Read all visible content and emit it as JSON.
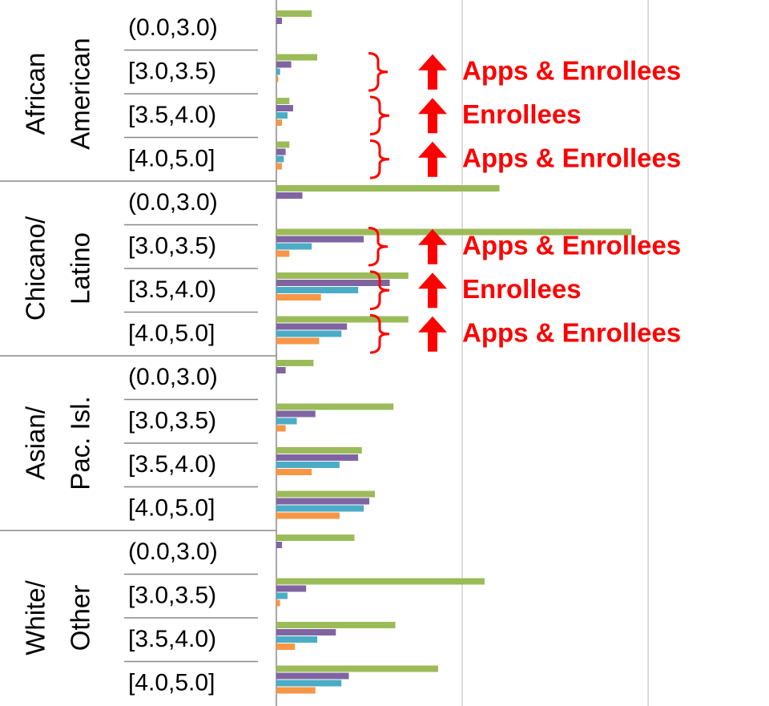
{
  "chart_data": {
    "type": "bar",
    "orientation": "horizontal",
    "groups": [
      {
        "lines": [
          "African",
          "American"
        ],
        "categories": [
          "(0.0,3.0)",
          "[3.0,3.5)",
          "[3.5,4.0)",
          "[4.0,5.0]"
        ]
      },
      {
        "lines": [
          "Chicano/",
          "Latino"
        ],
        "categories": [
          "(0.0,3.0)",
          "[3.0,3.5)",
          "[3.5,4.0)",
          "[4.0,5.0]"
        ]
      },
      {
        "lines": [
          "Asian/",
          "Pac. Isl."
        ],
        "categories": [
          "(0.0,3.0)",
          "[3.0,3.5)",
          "[3.5,4.0)",
          "[4.0,5.0]"
        ]
      },
      {
        "lines": [
          "White/",
          "Other"
        ],
        "categories": [
          "(0.0,3.0)",
          "[3.0,3.5)",
          "[3.5,4.0)",
          "[4.0,5.0]"
        ]
      }
    ],
    "series": [
      {
        "color": "#9bbb59",
        "values": [
          0.19,
          0.22,
          0.07,
          0.07,
          1.2,
          1.91,
          0.71,
          0.71,
          0.2,
          0.63,
          0.46,
          0.53,
          0.42,
          1.12,
          0.64,
          0.87
        ]
      },
      {
        "color": "#8064a2",
        "values": [
          0.03,
          0.08,
          0.09,
          0.05,
          0.14,
          0.47,
          0.61,
          0.38,
          0.05,
          0.21,
          0.44,
          0.5,
          0.03,
          0.16,
          0.32,
          0.39
        ]
      },
      {
        "color": "#4bacc6",
        "values": [
          0,
          0.02,
          0.06,
          0.04,
          0,
          0.19,
          0.44,
          0.35,
          0,
          0.11,
          0.34,
          0.47,
          0,
          0.06,
          0.22,
          0.35
        ]
      },
      {
        "color": "#f79646",
        "values": [
          0,
          0.01,
          0.03,
          0.03,
          0,
          0.07,
          0.24,
          0.23,
          0,
          0.05,
          0.19,
          0.34,
          0,
          0.02,
          0.1,
          0.21
        ]
      }
    ],
    "xlim": [
      0,
      2.65
    ],
    "xticks": [
      0,
      1,
      2
    ],
    "grid": true,
    "annotations": [
      "Apps & Enrollees",
      "Enrollees",
      "Apps & Enrollees",
      "Apps & Enrollees",
      "Enrollees",
      "Apps & Enrollees"
    ],
    "annotation_color": "#ff0000"
  }
}
